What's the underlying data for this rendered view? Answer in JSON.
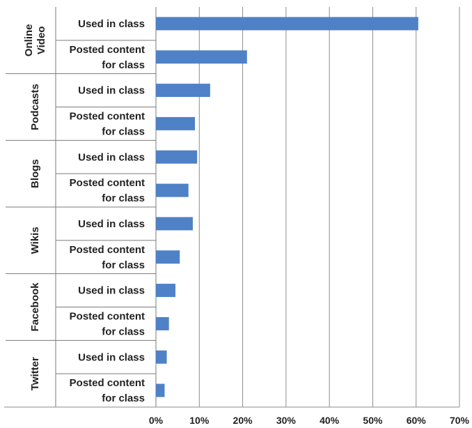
{
  "chart_data": {
    "type": "bar",
    "orientation": "horizontal",
    "title": "",
    "xlabel": "",
    "ylabel": "",
    "xlim": [
      0,
      70
    ],
    "x_ticks": [
      "0%",
      "10%",
      "20%",
      "30%",
      "40%",
      "50%",
      "60%",
      "70%"
    ],
    "grid": true,
    "bar_color": "#4F81C7",
    "groups": [
      {
        "name": "Online Video",
        "name_lines": [
          "Online",
          "Video"
        ],
        "items": [
          {
            "label_lines": [
              "Used in class"
            ],
            "value": 60.5
          },
          {
            "label_lines": [
              "Posted content",
              "for class"
            ],
            "value": 21
          }
        ]
      },
      {
        "name": "Podcasts",
        "name_lines": [
          "Podcasts"
        ],
        "items": [
          {
            "label_lines": [
              "Used in class"
            ],
            "value": 12.5
          },
          {
            "label_lines": [
              "Posted content",
              "for class"
            ],
            "value": 9
          }
        ]
      },
      {
        "name": "Blogs",
        "name_lines": [
          "Blogs"
        ],
        "items": [
          {
            "label_lines": [
              "Used in class"
            ],
            "value": 9.5
          },
          {
            "label_lines": [
              "Posted content",
              "for class"
            ],
            "value": 7.5
          }
        ]
      },
      {
        "name": "Wikis",
        "name_lines": [
          "Wikis"
        ],
        "items": [
          {
            "label_lines": [
              "Used in class"
            ],
            "value": 8.5
          },
          {
            "label_lines": [
              "Posted content",
              "for class"
            ],
            "value": 5.5
          }
        ]
      },
      {
        "name": "Facebook",
        "name_lines": [
          "Facebook"
        ],
        "items": [
          {
            "label_lines": [
              "Used in class"
            ],
            "value": 4.5
          },
          {
            "label_lines": [
              "Posted content",
              "for class"
            ],
            "value": 3
          }
        ]
      },
      {
        "name": "Twitter",
        "name_lines": [
          "Twitter"
        ],
        "items": [
          {
            "label_lines": [
              "Used in class"
            ],
            "value": 2.5
          },
          {
            "label_lines": [
              "Posted content",
              "for class"
            ],
            "value": 2
          }
        ]
      }
    ]
  }
}
